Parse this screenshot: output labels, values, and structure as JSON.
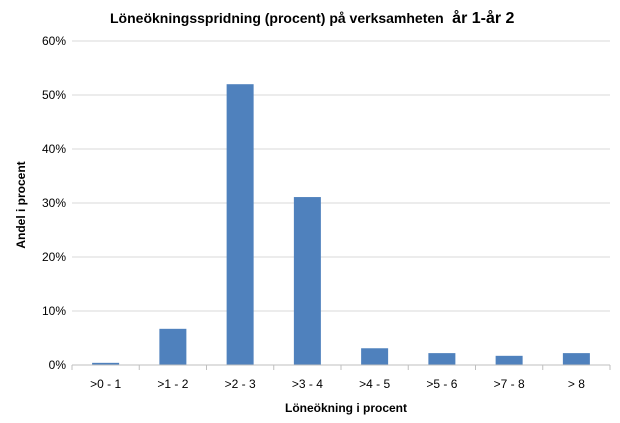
{
  "chart_data": {
    "type": "bar",
    "title_part1": "Löneökningsspridning (procent) på verksamheten",
    "title_part2": "år 1-år 2",
    "xlabel": "Löneökning i procent",
    "ylabel": "Andel i procent",
    "categories": [
      ">0 - 1",
      ">1 - 2",
      ">2 - 3",
      ">3 - 4",
      ">4 - 5",
      ">5 - 6",
      ">7 - 8",
      "> 8"
    ],
    "values": [
      0.4,
      6.7,
      52.0,
      31.1,
      3.1,
      2.2,
      1.7,
      2.2
    ],
    "ylim": [
      0,
      60
    ],
    "yticks": [
      "0%",
      "10%",
      "20%",
      "30%",
      "40%",
      "50%",
      "60%"
    ],
    "grid": true,
    "bar_color": "#4f81bd",
    "grid_color": "#d9d9d9"
  }
}
